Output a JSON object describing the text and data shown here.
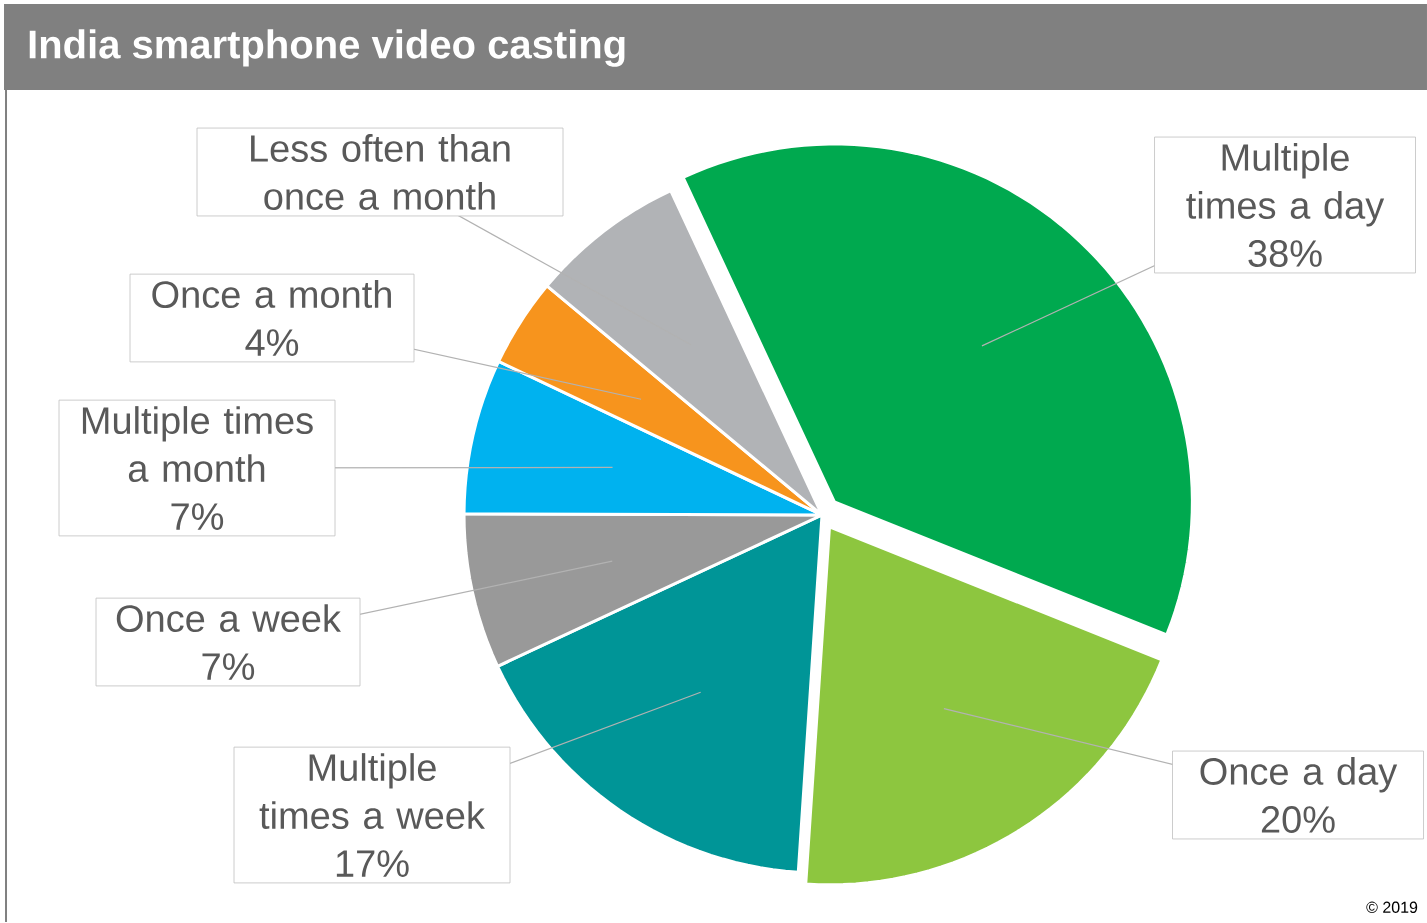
{
  "chart_data": {
    "type": "pie",
    "title": "India smartphone video casting",
    "categories": [
      "Multiple times a day",
      "Once a day",
      "Multiple times a week",
      "Once a week",
      "Multiple times a month",
      "Once a month",
      "Less often than once a month"
    ],
    "values": [
      38,
      20,
      17,
      7,
      7,
      4,
      7
    ],
    "value_labels": [
      "38%",
      "20%",
      "17%",
      "7%",
      "7%",
      "4%",
      null
    ],
    "colors": [
      "#00a94f",
      "#8dc63f",
      "#009597",
      "#999999",
      "#00b2ef",
      "#f7941d",
      "#b1b3b6"
    ],
    "annotations": [
      "© 2019"
    ]
  }
}
